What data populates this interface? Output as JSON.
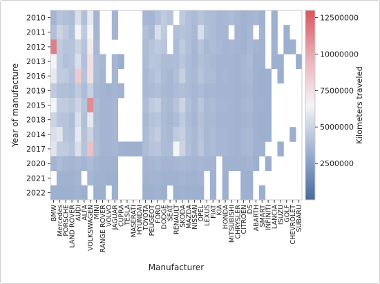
{
  "chart_data": {
    "type": "heatmap",
    "xlabel": "Manufacturer",
    "ylabel": "Year of manufacture",
    "x_categories": [
      "BMW",
      "Mercedes",
      "PORSCHE",
      "LAND ROVER",
      "AUDI",
      "ALFA",
      "VOLKSWAGEN",
      "MINI",
      "RANGE ROVER",
      "VOLVO",
      "JAGUAR",
      "CUPRA",
      "TESLA",
      "MASERATI",
      "HYUNDAI",
      "TOYOTA",
      "PEUGEOT",
      "FORD",
      "DODGE",
      "SEAT",
      "RENAULT",
      "SKODA",
      "MAZDA",
      "NISSAN",
      "OPEL",
      "LEXUS",
      "FIAT",
      "KIA",
      "HONDA",
      "MITSUBISHI",
      "CHRYSLER",
      "CITROEN",
      "DS",
      "ABARTH",
      "SMART",
      "INFINITI",
      "LANCIA",
      "ISUZU",
      "GOLF",
      "CHEVROLET",
      "SUBARU"
    ],
    "x_tick_labels": [
      "BMW",
      "Mercedes",
      "PORSCHE",
      "LAND ROVER",
      "AUDI",
      "ALFA",
      "VOLKSWAGEN",
      "MINI",
      "RANGE ROVER",
      "VOLVO",
      "JAGUAR",
      "CUPRA",
      "TESLA",
      "MASERATI",
      "HYUNDAI",
      "TOYOTA",
      "PEUGEOT",
      "FORD",
      "DODGE",
      "SEAT",
      "RENAULT",
      "SKODA",
      "MAZDA",
      "NISSAN",
      "OPEL",
      "LEXUS",
      "FIAT",
      "KIA",
      "HONDA",
      "MITSUBISHI",
      "CHRYSLER",
      "CITROEN",
      "DS",
      "ABARTH",
      "SMART",
      "INFINITI",
      "LANCIA",
      "ISUZU",
      "GOLF",
      "CHEVROLET",
      "SUBARU"
    ],
    "y_categories": [
      "2010",
      "2011",
      "2012",
      "2013",
      "2016",
      "2019",
      "2015",
      "2018",
      "2014",
      "2017",
      "2020",
      "2021",
      "2022"
    ],
    "colorbar": {
      "label": "Kilometers traveled",
      "min": 0,
      "max": 13000000,
      "ticks": [
        2500000,
        5000000,
        7500000,
        10000000,
        12500000
      ],
      "tick_labels": [
        "2500000",
        "5000000",
        "7500000",
        "10000000",
        "12500000"
      ],
      "colors": [
        "#4a6a9c",
        "#9dafcf",
        "#f4f4f6",
        "#e8b0b6",
        "#d9545e"
      ]
    },
    "values": [
      [
        3500000,
        4200000,
        4000000,
        3800000,
        5500000,
        4000000,
        6000000,
        3500000,
        null,
        null,
        3500000,
        null,
        null,
        null,
        null,
        3600000,
        3500000,
        4000000,
        4500000,
        4200000,
        null,
        4500000,
        4000000,
        3800000,
        4200000,
        3900000,
        3800000,
        3600000,
        3700000,
        3800000,
        3600000,
        3400000,
        3500000,
        3600000,
        3400000,
        null,
        3300000,
        null,
        null,
        null,
        null
      ],
      [
        4000000,
        5000000,
        4500000,
        4000000,
        6500000,
        4500000,
        6500000,
        3500000,
        null,
        null,
        3500000,
        null,
        null,
        null,
        null,
        4000000,
        3700000,
        5500000,
        4500000,
        null,
        4000000,
        4200000,
        4000000,
        3700000,
        5500000,
        4000000,
        3800000,
        3600000,
        3600000,
        null,
        3500000,
        3400000,
        3600000,
        null,
        3500000,
        null,
        3300000,
        null,
        3300000,
        null,
        null
      ],
      [
        11500000,
        4500000,
        4200000,
        4200000,
        5000000,
        4200000,
        7000000,
        3700000,
        null,
        null,
        null,
        null,
        null,
        null,
        null,
        3800000,
        4200000,
        4500000,
        4300000,
        null,
        3800000,
        4500000,
        4000000,
        3600000,
        4200000,
        3700000,
        3800000,
        3700000,
        3500000,
        3600000,
        3500000,
        3400000,
        3700000,
        3500000,
        3400000,
        null,
        3400000,
        null,
        3200000,
        3300000,
        null
      ],
      [
        6500000,
        4500000,
        4000000,
        4200000,
        5500000,
        4000000,
        7500000,
        3800000,
        3600000,
        null,
        3500000,
        3200000,
        null,
        null,
        null,
        3800000,
        4300000,
        4200000,
        3900000,
        3800000,
        3900000,
        4300000,
        3900000,
        3600000,
        4000000,
        3800000,
        3700000,
        3500000,
        3500000,
        3500000,
        3400000,
        3600000,
        3800000,
        3400000,
        3400000,
        null,
        3300000,
        3300000,
        null,
        null,
        3200000
      ],
      [
        6000000,
        4500000,
        4500000,
        4000000,
        8500000,
        4200000,
        7500000,
        3800000,
        3500000,
        null,
        3600000,
        null,
        null,
        null,
        null,
        3700000,
        4000000,
        4300000,
        3800000,
        3600000,
        4000000,
        4800000,
        3900000,
        3700000,
        4200000,
        3800000,
        3800000,
        3500000,
        3600000,
        3500000,
        3400000,
        3600000,
        3700000,
        3400000,
        3300000,
        3300000,
        null,
        3200000,
        null,
        null,
        null
      ],
      [
        4500000,
        4000000,
        4000000,
        3900000,
        4500000,
        3800000,
        4800000,
        3600000,
        3500000,
        3400000,
        3500000,
        3400000,
        null,
        null,
        null,
        3700000,
        3800000,
        4000000,
        3700000,
        3600000,
        3800000,
        4000000,
        3800000,
        3600000,
        3800000,
        3600000,
        3600000,
        3500000,
        3500000,
        3500000,
        3400000,
        3500000,
        3600000,
        3400000,
        3300000,
        3300000,
        null,
        null,
        null,
        null,
        null
      ],
      [
        6500000,
        4600000,
        4500000,
        4300000,
        5000000,
        4200000,
        11000000,
        3800000,
        3500000,
        3500000,
        3600000,
        null,
        null,
        null,
        null,
        3900000,
        4500000,
        4800000,
        3900000,
        3700000,
        4200000,
        5000000,
        4000000,
        3700000,
        4300000,
        3700000,
        3800000,
        3600000,
        3600000,
        3500000,
        3400000,
        3600000,
        3700000,
        3400000,
        3400000,
        3300000,
        null,
        null,
        null,
        null,
        null
      ],
      [
        5000000,
        4300000,
        4200000,
        3900000,
        5500000,
        4000000,
        6000000,
        3700000,
        3500000,
        3500000,
        3600000,
        null,
        null,
        null,
        null,
        3700000,
        4100000,
        4300000,
        3800000,
        3600000,
        3900000,
        4500000,
        3900000,
        3600000,
        4100000,
        3700000,
        3700000,
        3500000,
        3500000,
        3500000,
        3400000,
        3500000,
        3600000,
        3400000,
        3300000,
        3300000,
        null,
        null,
        null,
        null,
        null
      ],
      [
        5500000,
        5800000,
        4200000,
        4000000,
        6000000,
        4100000,
        5000000,
        3800000,
        3500000,
        3500000,
        3600000,
        null,
        null,
        null,
        null,
        3800000,
        4300000,
        4600000,
        3900000,
        3700000,
        4500000,
        4800000,
        4000000,
        3700000,
        4200000,
        3700000,
        3800000,
        3600000,
        3600000,
        3500000,
        3400000,
        3600000,
        3700000,
        3400000,
        3300000,
        3300000,
        null,
        null,
        null,
        3200000,
        null
      ],
      [
        5800000,
        4600000,
        4500000,
        4200000,
        5500000,
        4200000,
        9000000,
        3900000,
        3500000,
        3500000,
        3600000,
        3400000,
        3300000,
        3300000,
        3300000,
        3800000,
        4200000,
        4300000,
        3900000,
        3800000,
        6500000,
        5000000,
        4000000,
        3700000,
        4300000,
        3700000,
        3800000,
        3600000,
        3600000,
        3500000,
        3400000,
        3600000,
        3700000,
        3400000,
        3400000,
        null,
        null,
        3200000,
        null,
        null,
        null
      ],
      [
        3500000,
        3800000,
        3600000,
        3500000,
        3700000,
        3500000,
        3800000,
        3500000,
        3400000,
        3400000,
        3400000,
        null,
        null,
        null,
        null,
        3500000,
        3600000,
        3700000,
        3500000,
        3500000,
        3600000,
        3700000,
        3600000,
        3500000,
        3600000,
        3500000,
        3500000,
        null,
        3400000,
        3400000,
        3400000,
        3400000,
        3500000,
        3300000,
        null,
        3200000,
        null,
        null,
        null,
        null,
        null
      ],
      [
        null,
        3400000,
        3400000,
        3400000,
        3500000,
        null,
        3600000,
        3400000,
        3400000,
        3300000,
        3300000,
        null,
        null,
        null,
        null,
        3400000,
        3500000,
        3500000,
        3400000,
        3400000,
        3400000,
        3500000,
        3400000,
        3400000,
        3500000,
        null,
        3400000,
        null,
        3300000,
        null,
        null,
        3300000,
        3300000,
        null,
        null,
        null,
        null,
        null,
        null,
        null,
        null
      ],
      [
        3300000,
        3300000,
        3300000,
        3300000,
        3400000,
        3300000,
        null,
        3300000,
        3300000,
        null,
        3300000,
        null,
        null,
        null,
        null,
        3300000,
        3300000,
        3400000,
        3300000,
        null,
        3300000,
        3400000,
        3300000,
        3300000,
        3300000,
        null,
        3300000,
        null,
        3300000,
        null,
        null,
        3300000,
        3300000,
        null,
        3200000,
        null,
        null,
        null,
        null,
        null,
        null
      ]
    ]
  }
}
